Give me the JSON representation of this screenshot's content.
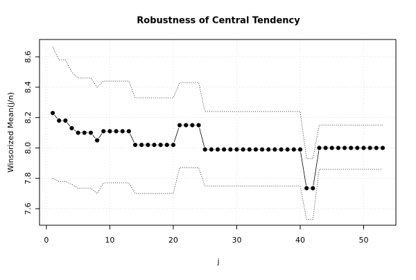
{
  "chart_data": {
    "type": "line",
    "title": "Robustness of Central Tendency",
    "xlabel": "j",
    "ylabel": "Winsorized Mean(j/n)",
    "x": [
      1,
      2,
      3,
      4,
      5,
      6,
      7,
      8,
      9,
      10,
      11,
      12,
      13,
      14,
      15,
      16,
      17,
      18,
      19,
      20,
      21,
      22,
      23,
      24,
      25,
      26,
      27,
      28,
      29,
      30,
      31,
      32,
      33,
      34,
      35,
      36,
      37,
      38,
      39,
      40,
      41,
      42,
      43,
      44,
      45,
      46,
      47,
      48,
      49,
      50,
      51,
      52,
      53
    ],
    "series": [
      {
        "style": "points",
        "color": "#000000",
        "values": [
          8.23,
          8.18,
          8.18,
          8.13,
          8.1,
          8.1,
          8.1,
          8.05,
          8.11,
          8.11,
          8.11,
          8.11,
          8.11,
          8.02,
          8.02,
          8.02,
          8.02,
          8.02,
          8.02,
          8.02,
          8.15,
          8.15,
          8.15,
          8.15,
          7.99,
          7.99,
          7.99,
          7.99,
          7.99,
          7.99,
          7.99,
          7.99,
          7.99,
          7.99,
          7.99,
          7.99,
          7.99,
          7.99,
          7.99,
          7.99,
          7.735,
          7.735,
          8.0,
          8.0,
          8.0,
          8.0,
          8.0,
          8.0,
          8.0,
          8.0,
          8.0,
          8.0,
          8.0
        ]
      },
      {
        "style": "dotted",
        "color": "#000000",
        "values": [
          8.666,
          8.58,
          8.58,
          8.5,
          8.46,
          8.46,
          8.46,
          8.4,
          8.44,
          8.44,
          8.44,
          8.44,
          8.44,
          8.33,
          8.33,
          8.33,
          8.33,
          8.33,
          8.33,
          8.33,
          8.43,
          8.43,
          8.43,
          8.43,
          8.24,
          8.24,
          8.24,
          8.24,
          8.24,
          8.24,
          8.24,
          8.24,
          8.24,
          8.24,
          8.24,
          8.24,
          8.24,
          8.24,
          8.24,
          8.24,
          7.93,
          7.93,
          8.15,
          8.15,
          8.15,
          8.15,
          8.15,
          8.15,
          8.15,
          8.15,
          8.15,
          8.15,
          8.15
        ]
      },
      {
        "style": "dotted",
        "color": "#000000",
        "values": [
          7.8,
          7.78,
          7.78,
          7.76,
          7.735,
          7.735,
          7.735,
          7.7,
          7.77,
          7.77,
          7.77,
          7.77,
          7.77,
          7.7,
          7.7,
          7.7,
          7.7,
          7.7,
          7.7,
          7.7,
          7.87,
          7.87,
          7.87,
          7.87,
          7.75,
          7.75,
          7.75,
          7.75,
          7.75,
          7.75,
          7.75,
          7.75,
          7.75,
          7.75,
          7.75,
          7.75,
          7.75,
          7.75,
          7.75,
          7.75,
          7.53,
          7.53,
          7.86,
          7.86,
          7.86,
          7.86,
          7.86,
          7.86,
          7.86,
          7.86,
          7.86,
          7.86,
          7.86
        ]
      }
    ],
    "xlim": [
      -1.08,
      55.08
    ],
    "xticks": [
      0,
      10,
      20,
      30,
      40,
      50
    ],
    "ylim": [
      7.491,
      8.714
    ],
    "yticks": [
      7.6,
      7.8,
      {
        "value": 8,
        "label": "8.0"
      },
      8.2,
      8.4,
      8.6
    ],
    "grid": true
  }
}
